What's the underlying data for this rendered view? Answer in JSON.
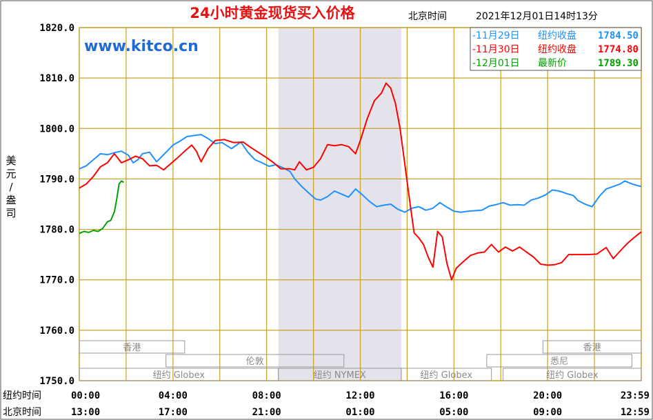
{
  "chart_data": {
    "type": "line",
    "title": "24小时黄金现货买入价格",
    "timestamp": {
      "zone": "北京时间",
      "value": "2021年12月01日14时13分"
    },
    "watermark": "www.kitco.cn",
    "ylabel": "美元/盎司",
    "ylim": [
      1750,
      1820
    ],
    "yticks": [
      "1820.0",
      "1810.0",
      "1800.0",
      "1790.0",
      "1780.0",
      "1770.0",
      "1760.0",
      "1750.0"
    ],
    "xlim": [
      0,
      24
    ],
    "x_axis_rows": [
      {
        "name": "纽约时间",
        "ticks": [
          "00:00",
          "04:00",
          "08:00",
          "12:00",
          "16:00",
          "20:00",
          "23:59"
        ]
      },
      {
        "name": "北京时间",
        "ticks": [
          "13:00",
          "17:00",
          "21:00",
          "01:00",
          "05:00",
          "09:00",
          "12:59"
        ]
      }
    ],
    "grid": true,
    "legend_position": "top-right",
    "highlight_band": {
      "x": [
        8.5,
        13.75
      ],
      "label": "纽约 NYMEX"
    },
    "sessions": [
      {
        "label": "香港",
        "x": [
          0,
          4.5
        ],
        "row": 1
      },
      {
        "label": "伦敦",
        "x": [
          3.7,
          11.3
        ],
        "row": 2
      },
      {
        "label": "纽约 Globex",
        "x": [
          0,
          8.5
        ],
        "row": 3
      },
      {
        "label": "纽约 NYMEX",
        "x": [
          8.5,
          13.75
        ],
        "row": 3
      },
      {
        "label": "纽约 Globex",
        "x": [
          13.75,
          17.6
        ],
        "row": 3
      },
      {
        "label": "香港",
        "x": [
          19.8,
          24
        ],
        "row": 1
      },
      {
        "label": "悉尼",
        "x": [
          17.4,
          23.6
        ],
        "row": 2
      },
      {
        "label": "纽约 Globex",
        "x": [
          18.1,
          24
        ],
        "row": 3
      }
    ],
    "series": [
      {
        "name": "11月29日",
        "legend_label": "纽约收盘",
        "legend_value": "1784.50",
        "color": "#1e90ff",
        "points": [
          [
            0,
            1792
          ],
          [
            0.3,
            1792.6
          ],
          [
            0.6,
            1793.8
          ],
          [
            0.9,
            1795
          ],
          [
            1.2,
            1794.8
          ],
          [
            1.5,
            1795.2
          ],
          [
            1.8,
            1795.5
          ],
          [
            2.1,
            1794.7
          ],
          [
            2.3,
            1793.2
          ],
          [
            2.5,
            1793.8
          ],
          [
            2.7,
            1795
          ],
          [
            3.0,
            1795.3
          ],
          [
            3.3,
            1793.4
          ],
          [
            3.6,
            1794.8
          ],
          [
            4.0,
            1796.7
          ],
          [
            4.3,
            1797.5
          ],
          [
            4.6,
            1798.4
          ],
          [
            4.9,
            1798.6
          ],
          [
            5.2,
            1798.8
          ],
          [
            5.5,
            1798
          ],
          [
            5.8,
            1797
          ],
          [
            6.1,
            1797.2
          ],
          [
            6.5,
            1796
          ],
          [
            6.9,
            1797.3
          ],
          [
            7.2,
            1795.3
          ],
          [
            7.5,
            1793.8
          ],
          [
            7.8,
            1793.2
          ],
          [
            8.1,
            1792.5
          ],
          [
            8.4,
            1792.8
          ],
          [
            8.7,
            1792.2
          ],
          [
            9.0,
            1791.5
          ],
          [
            9.2,
            1790
          ],
          [
            9.5,
            1788.5
          ],
          [
            9.8,
            1787.2
          ],
          [
            10.1,
            1786
          ],
          [
            10.3,
            1785.8
          ],
          [
            10.6,
            1786.5
          ],
          [
            10.9,
            1787.6
          ],
          [
            11.2,
            1787
          ],
          [
            11.5,
            1786.4
          ],
          [
            11.8,
            1788
          ],
          [
            12.1,
            1786.8
          ],
          [
            12.4,
            1785.5
          ],
          [
            12.7,
            1784.5
          ],
          [
            13.0,
            1784.8
          ],
          [
            13.3,
            1785
          ],
          [
            13.6,
            1784
          ],
          [
            13.9,
            1783.4
          ],
          [
            14.2,
            1784.2
          ],
          [
            14.5,
            1784.5
          ],
          [
            14.8,
            1783.8
          ],
          [
            15.1,
            1784.2
          ],
          [
            15.4,
            1785.3
          ],
          [
            15.7,
            1784.4
          ],
          [
            16.0,
            1783.6
          ],
          [
            16.3,
            1783.4
          ],
          [
            16.6,
            1783.6
          ],
          [
            16.9,
            1783.7
          ],
          [
            17.2,
            1783.8
          ],
          [
            17.5,
            1784.6
          ],
          [
            17.8,
            1784.9
          ],
          [
            18.1,
            1785.3
          ],
          [
            18.4,
            1784.8
          ],
          [
            18.7,
            1784.9
          ],
          [
            19.0,
            1784.8
          ],
          [
            19.3,
            1785.8
          ],
          [
            19.6,
            1786.2
          ],
          [
            19.9,
            1786.8
          ],
          [
            20.2,
            1787.8
          ],
          [
            20.5,
            1787.6
          ],
          [
            20.8,
            1787.1
          ],
          [
            21.1,
            1786.7
          ],
          [
            21.3,
            1785.7
          ],
          [
            21.6,
            1785
          ],
          [
            21.9,
            1784.5
          ],
          [
            22.2,
            1786.5
          ],
          [
            22.5,
            1788
          ],
          [
            22.8,
            1788.5
          ],
          [
            23.1,
            1789
          ],
          [
            23.3,
            1789.6
          ],
          [
            23.6,
            1789
          ],
          [
            23.9,
            1788.6
          ],
          [
            24,
            1788.5
          ]
        ]
      },
      {
        "name": "11月30日",
        "legend_label": "纽约收盘",
        "legend_value": "1774.80",
        "color": "#ff0000",
        "points": [
          [
            0,
            1788.2
          ],
          [
            0.3,
            1789
          ],
          [
            0.6,
            1790.5
          ],
          [
            0.9,
            1792.4
          ],
          [
            1.2,
            1793.2
          ],
          [
            1.5,
            1795
          ],
          [
            1.8,
            1793.2
          ],
          [
            2.1,
            1793.8
          ],
          [
            2.4,
            1794.5
          ],
          [
            2.7,
            1794
          ],
          [
            3.0,
            1792.6
          ],
          [
            3.3,
            1792.7
          ],
          [
            3.6,
            1791.8
          ],
          [
            3.9,
            1793
          ],
          [
            4.2,
            1794.2
          ],
          [
            4.5,
            1795.5
          ],
          [
            4.8,
            1796.7
          ],
          [
            5.0,
            1795.5
          ],
          [
            5.2,
            1793.4
          ],
          [
            5.5,
            1796
          ],
          [
            5.8,
            1797.6
          ],
          [
            6.2,
            1797.8
          ],
          [
            6.6,
            1797.2
          ],
          [
            7.0,
            1797.3
          ],
          [
            7.3,
            1796.3
          ],
          [
            7.7,
            1795.1
          ],
          [
            8.0,
            1794.2
          ],
          [
            8.3,
            1793.2
          ],
          [
            8.6,
            1792
          ],
          [
            9.0,
            1792
          ],
          [
            9.2,
            1791.8
          ],
          [
            9.4,
            1793.4
          ],
          [
            9.7,
            1791.8
          ],
          [
            10.0,
            1792.3
          ],
          [
            10.3,
            1794
          ],
          [
            10.6,
            1796.8
          ],
          [
            10.9,
            1796.6
          ],
          [
            11.2,
            1796.8
          ],
          [
            11.5,
            1796.4
          ],
          [
            11.8,
            1795
          ],
          [
            12.0,
            1797.6
          ],
          [
            12.3,
            1802
          ],
          [
            12.6,
            1805.5
          ],
          [
            12.9,
            1807
          ],
          [
            13.1,
            1809
          ],
          [
            13.3,
            1808
          ],
          [
            13.5,
            1805
          ],
          [
            13.7,
            1800
          ],
          [
            13.9,
            1793
          ],
          [
            14.1,
            1786
          ],
          [
            14.3,
            1779.3
          ],
          [
            14.5,
            1778.3
          ],
          [
            14.7,
            1777
          ],
          [
            14.9,
            1774.5
          ],
          [
            15.1,
            1772.5
          ],
          [
            15.3,
            1779.6
          ],
          [
            15.5,
            1778.5
          ],
          [
            15.7,
            1773.3
          ],
          [
            15.9,
            1770
          ],
          [
            16.1,
            1772.3
          ],
          [
            16.4,
            1773.6
          ],
          [
            16.7,
            1774.8
          ],
          [
            17.0,
            1775.3
          ],
          [
            17.3,
            1775.5
          ],
          [
            17.6,
            1777
          ],
          [
            17.9,
            1775.5
          ],
          [
            18.2,
            1776.5
          ],
          [
            18.5,
            1775.7
          ],
          [
            18.8,
            1776.5
          ],
          [
            19.1,
            1775.5
          ],
          [
            19.4,
            1774.5
          ],
          [
            19.7,
            1773.1
          ],
          [
            20.0,
            1772.9
          ],
          [
            20.3,
            1773
          ],
          [
            20.6,
            1773.4
          ],
          [
            20.9,
            1775
          ],
          [
            21.3,
            1775
          ],
          [
            21.7,
            1775
          ],
          [
            22.1,
            1775.1
          ],
          [
            22.5,
            1776.4
          ],
          [
            22.8,
            1774.2
          ],
          [
            23.1,
            1775.7
          ],
          [
            23.4,
            1777.2
          ],
          [
            23.7,
            1778.4
          ],
          [
            24,
            1779.5
          ]
        ]
      },
      {
        "name": "12月01日",
        "legend_label": "最新价",
        "legend_value": "1789.30",
        "color": "#00a000",
        "points": [
          [
            0,
            1779.2
          ],
          [
            0.2,
            1779.6
          ],
          [
            0.4,
            1779.4
          ],
          [
            0.6,
            1779.8
          ],
          [
            0.8,
            1779.6
          ],
          [
            1.0,
            1780.2
          ],
          [
            1.2,
            1781.5
          ],
          [
            1.35,
            1781.8
          ],
          [
            1.5,
            1783.5
          ],
          [
            1.6,
            1786
          ],
          [
            1.7,
            1789
          ],
          [
            1.8,
            1789.6
          ],
          [
            1.9,
            1789.3
          ]
        ]
      }
    ]
  }
}
